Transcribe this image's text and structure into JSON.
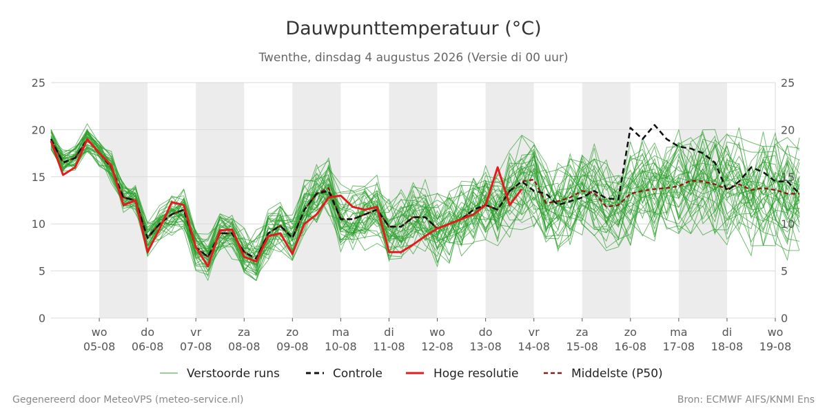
{
  "chart_data": {
    "type": "line",
    "title": "Dauwpunttemperatuur (°C)",
    "subtitle": "Twenthe, dinsdag  4 augustus 2026 (Versie di 00 uur)",
    "ylim": [
      0,
      25
    ],
    "yticks": [
      0,
      5,
      10,
      15,
      20,
      25
    ],
    "x_start": "2026-08-04T00:00",
    "x_end": "2026-08-19T00:00",
    "x_step_hours": 6,
    "day_ticks": [
      {
        "date": "2026-08-05",
        "day": "wo",
        "label": "05-08"
      },
      {
        "date": "2026-08-06",
        "day": "do",
        "label": "06-08"
      },
      {
        "date": "2026-08-07",
        "day": "vr",
        "label": "07-08"
      },
      {
        "date": "2026-08-08",
        "day": "za",
        "label": "08-08"
      },
      {
        "date": "2026-08-09",
        "day": "zo",
        "label": "09-08"
      },
      {
        "date": "2026-08-10",
        "day": "ma",
        "label": "10-08"
      },
      {
        "date": "2026-08-11",
        "day": "di",
        "label": "11-08"
      },
      {
        "date": "2026-08-12",
        "day": "wo",
        "label": "12-08"
      },
      {
        "date": "2026-08-13",
        "day": "do",
        "label": "13-08"
      },
      {
        "date": "2026-08-14",
        "day": "vr",
        "label": "14-08"
      },
      {
        "date": "2026-08-15",
        "day": "za",
        "label": "15-08"
      },
      {
        "date": "2026-08-16",
        "day": "zo",
        "label": "16-08"
      },
      {
        "date": "2026-08-17",
        "day": "ma",
        "label": "17-08"
      },
      {
        "date": "2026-08-18",
        "day": "di",
        "label": "18-08"
      },
      {
        "date": "2026-08-19",
        "day": "wo",
        "label": "19-08"
      }
    ],
    "shaded_days": [
      "2026-08-05",
      "2026-08-07",
      "2026-08-09",
      "2026-08-11",
      "2026-08-13",
      "2026-08-15",
      "2026-08-17"
    ],
    "grid": true,
    "legend_position": "bottom",
    "series": [
      {
        "name": "Controle",
        "color": "#111111",
        "style": "dashed",
        "values": [
          19.0,
          16.5,
          17.0,
          19.0,
          17.5,
          16.0,
          12.8,
          12.5,
          8.5,
          10.0,
          11.0,
          11.5,
          7.5,
          6.5,
          9.0,
          9.0,
          7.0,
          6.3,
          9.0,
          9.8,
          8.5,
          11.5,
          13.2,
          13.5,
          10.5,
          10.5,
          11.0,
          11.5,
          9.7,
          9.7,
          10.7,
          10.7,
          9.5,
          10.0,
          10.5,
          11.5,
          12.0,
          11.5,
          13.5,
          14.5,
          13.5,
          13.2,
          12.0,
          12.4,
          12.8,
          13.5,
          12.7,
          12.6,
          20.2,
          19.0,
          20.5,
          19.0,
          18.2,
          18.0,
          17.5,
          16.5,
          13.5,
          14.5,
          16.0,
          15.5,
          14.5,
          14.5,
          13.2
        ]
      },
      {
        "name": "Hoge resolutie",
        "color": "#e41a1c",
        "style": "solid",
        "values": [
          18.8,
          15.2,
          16.0,
          19.0,
          17.5,
          16.2,
          12.0,
          12.5,
          7.0,
          9.5,
          12.3,
          12.0,
          7.5,
          5.5,
          9.3,
          9.4,
          6.5,
          6.0,
          8.7,
          9.0,
          6.8,
          10.0,
          11.0,
          12.8,
          13.0,
          11.8,
          11.5,
          11.8,
          7.0,
          7.0,
          7.8,
          8.7,
          9.5,
          10.0,
          10.5,
          11.0,
          12.0,
          16.0,
          12.0,
          13.7
        ]
      },
      {
        "name": "Middelste (P50)",
        "color": "#8b1a1a",
        "style": "dashed",
        "values": [
          19.0,
          16.5,
          17.0,
          19.0,
          17.5,
          16.0,
          12.8,
          12.5,
          8.5,
          10.0,
          11.0,
          11.5,
          7.5,
          6.5,
          9.0,
          9.0,
          7.0,
          6.3,
          9.0,
          9.8,
          8.5,
          11.5,
          13.2,
          13.8,
          10.5,
          10.5,
          11.0,
          11.5,
          9.7,
          9.7,
          10.7,
          10.7,
          9.5,
          10.0,
          10.5,
          11.5,
          12.0,
          11.5,
          13.5,
          14.5,
          14.7,
          12.2,
          12.4,
          12.8,
          13.5,
          13.3,
          11.8,
          12.0,
          13.2,
          13.5,
          13.7,
          13.8,
          14.0,
          14.6,
          14.5,
          14.2,
          13.7,
          14.2,
          13.6,
          13.8,
          13.6,
          13.2,
          13.2
        ]
      }
    ],
    "ensemble": {
      "name": "Verstoorde runs",
      "color": "#2ca02c",
      "members": 40,
      "note": "thin green ensemble member lines spread around the median"
    }
  },
  "legend": {
    "ensemble": "Verstoorde runs",
    "control": "Controle",
    "hires": "Hoge resolutie",
    "median": "Middelste (P50)"
  },
  "footer": {
    "left": "Gegenereerd door MeteoVPS (meteo-service.nl)",
    "right": "Bron: ECMWF AIFS/KNMI Ens"
  },
  "colors": {
    "shade": "#ececec",
    "grid": "#d9d9d9",
    "ensemble": "#2ca02c",
    "control": "#111111",
    "hires": "#e41a1c",
    "median": "#8b1a1a"
  }
}
